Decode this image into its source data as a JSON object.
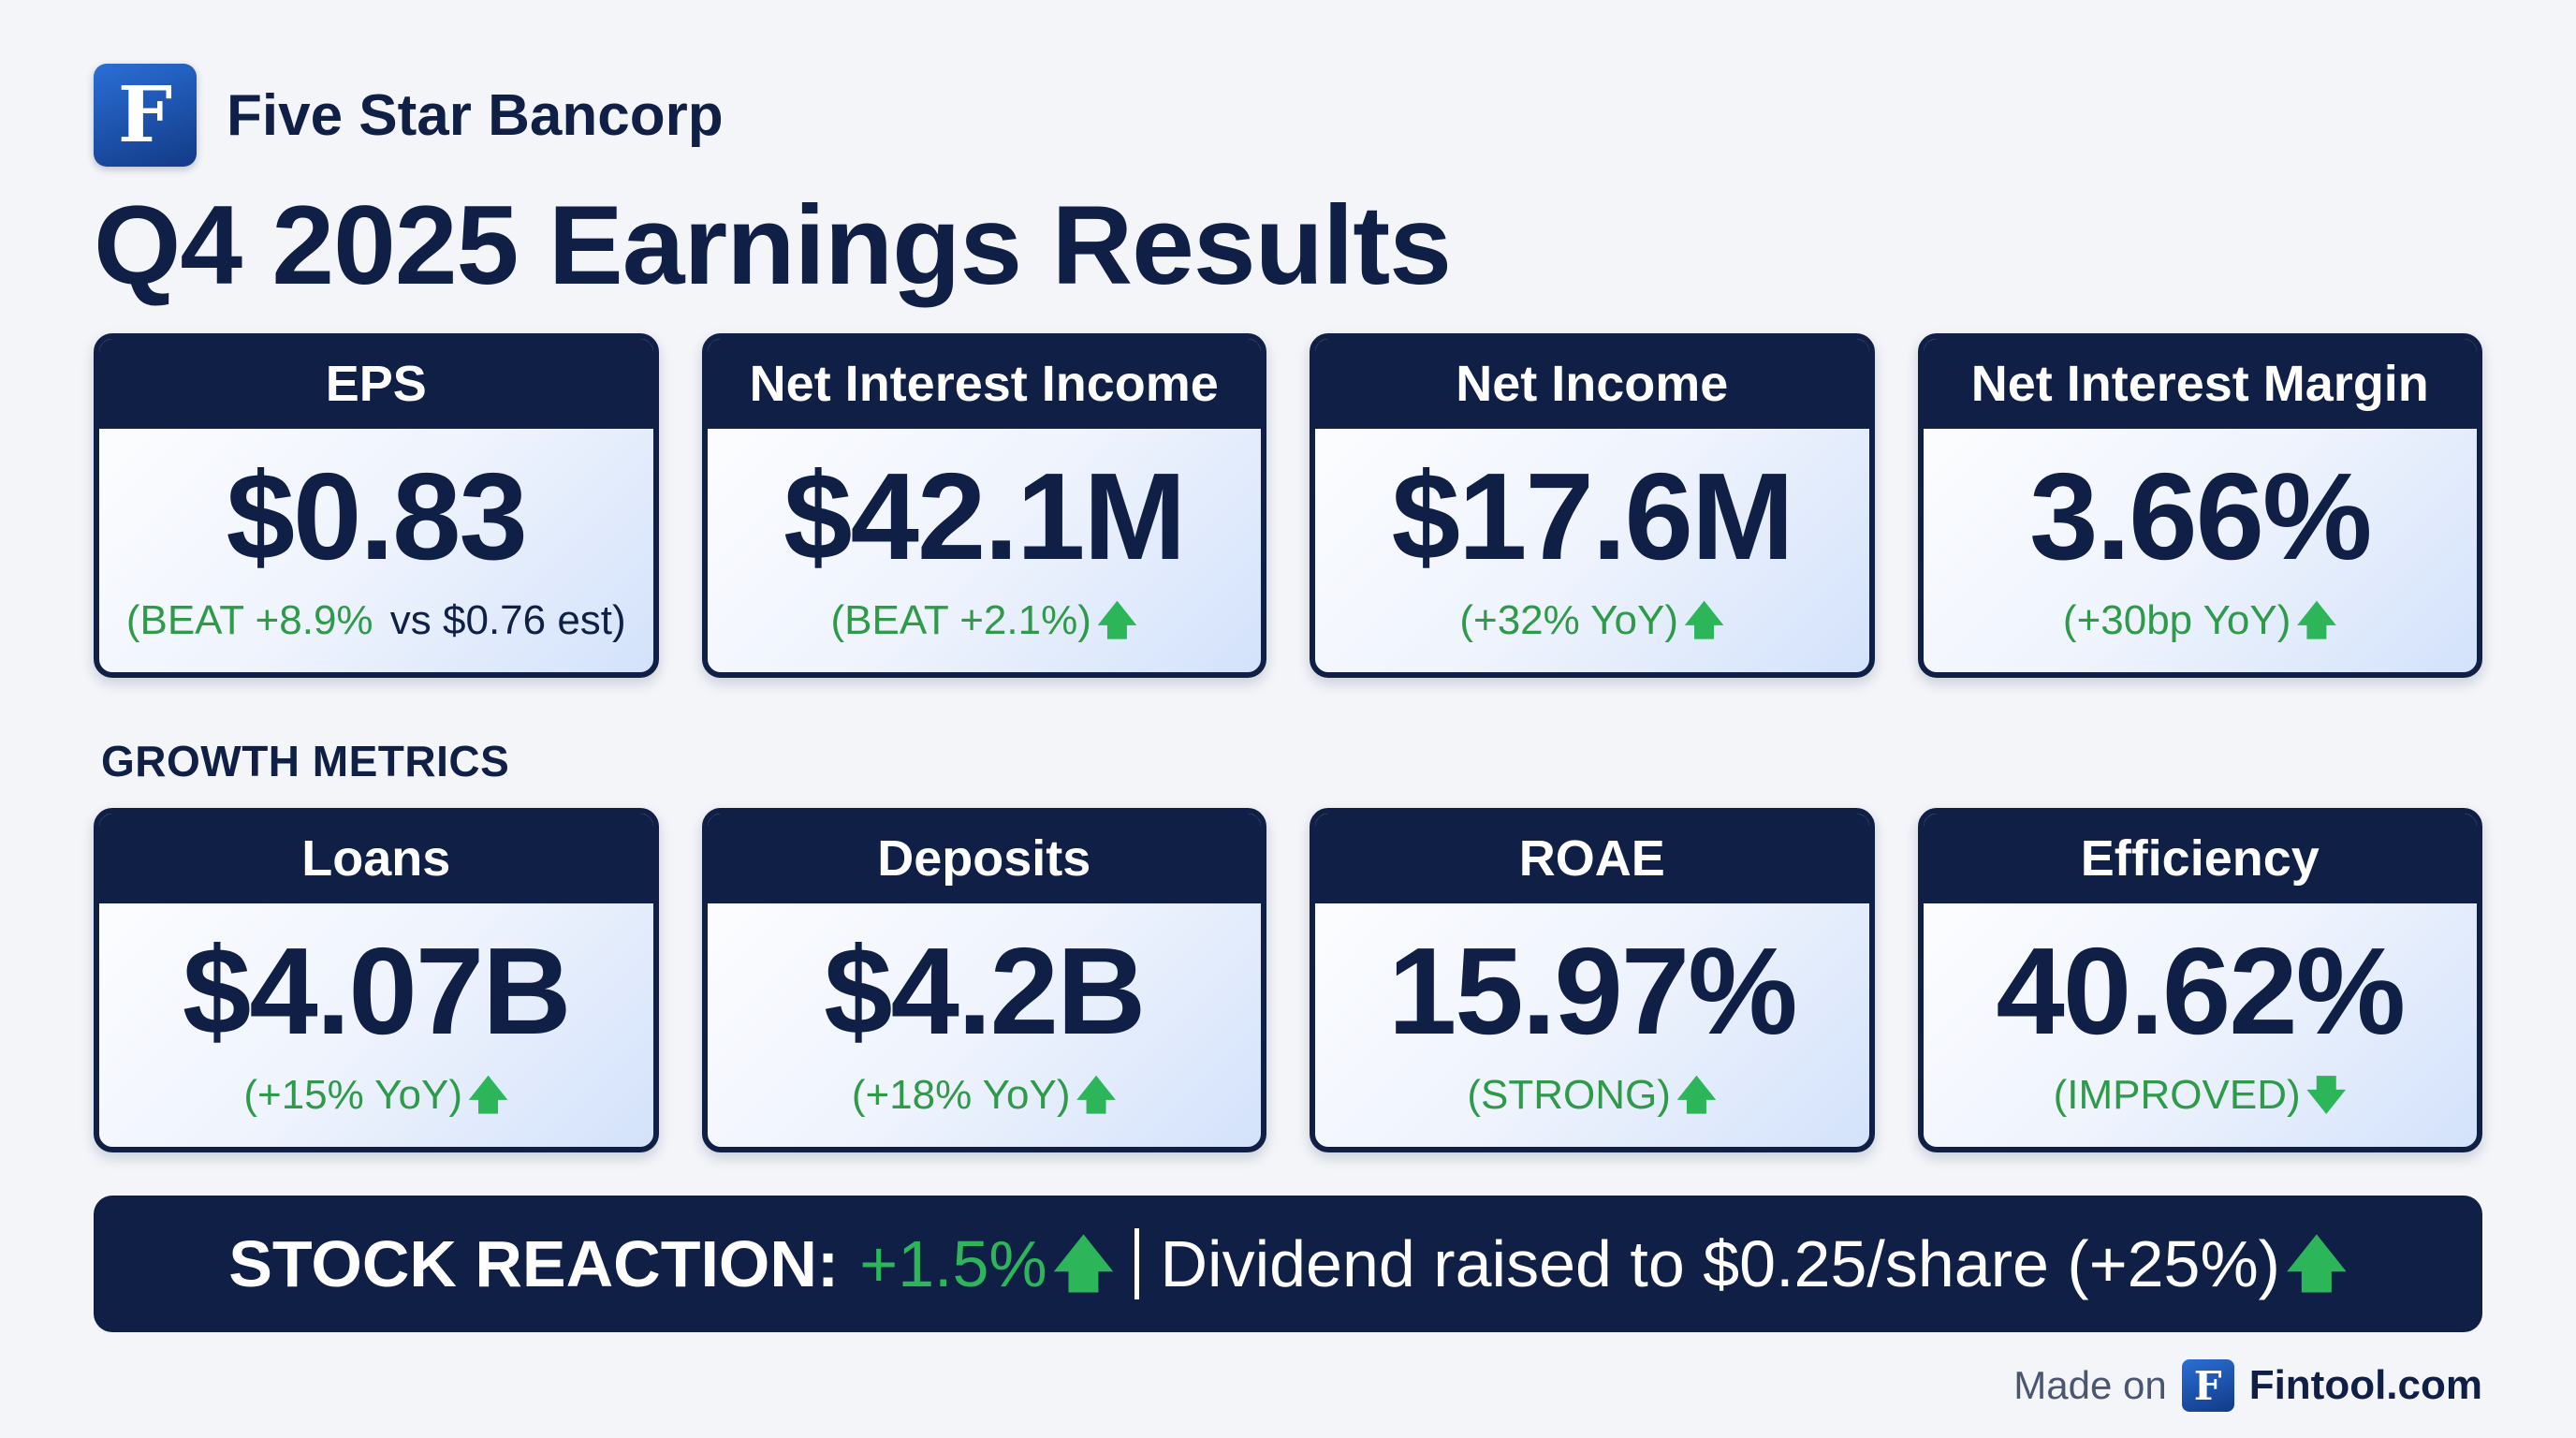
{
  "brand": {
    "logo_letter": "F",
    "name": "Five Star Bancorp"
  },
  "title": "Q4 2025 Earnings Results",
  "headline_cards": [
    {
      "label": "EPS",
      "value": "$0.83",
      "sub_prefix": "(BEAT +8.9%",
      "sub_suffix": " vs $0.76 est)",
      "arrow": ""
    },
    {
      "label": "Net Interest Income",
      "value": "$42.1M",
      "sub_prefix": "(BEAT +2.1%)",
      "sub_suffix": "",
      "arrow": "up"
    },
    {
      "label": "Net Income",
      "value": "$17.6M",
      "sub_prefix": "(+32% YoY)",
      "sub_suffix": "",
      "arrow": "up"
    },
    {
      "label": "Net Interest Margin",
      "value": "3.66%",
      "sub_prefix": "(+30bp YoY)",
      "sub_suffix": "",
      "arrow": "up"
    }
  ],
  "section_label": "GROWTH METRICS",
  "growth_cards": [
    {
      "label": "Loans",
      "value": "$4.07B",
      "sub_prefix": "(+15% YoY)",
      "sub_suffix": "",
      "arrow": "up"
    },
    {
      "label": "Deposits",
      "value": "$4.2B",
      "sub_prefix": "(+18% YoY)",
      "sub_suffix": "",
      "arrow": "up"
    },
    {
      "label": "ROAE",
      "value": "15.97%",
      "sub_prefix": "(STRONG)",
      "sub_suffix": "",
      "arrow": "up"
    },
    {
      "label": "Efficiency",
      "value": "40.62%",
      "sub_prefix": "(IMPROVED)",
      "sub_suffix": "",
      "arrow": "down"
    }
  ],
  "banner": {
    "label": "STOCK REACTION:",
    "stock_change": "+1.5%",
    "dividend_text": "Dividend raised to $0.25/share (+25%)"
  },
  "footer": {
    "made_on": "Made on",
    "logo_letter": "F",
    "site": "Fintool.com"
  },
  "colors": {
    "navy": "#0f1f45",
    "green_text": "#2f9a4a",
    "green_arrow": "#2db55a",
    "background": "#f3f5f9"
  },
  "icons": {
    "up": "arrow-up-icon",
    "down": "arrow-down-icon"
  }
}
